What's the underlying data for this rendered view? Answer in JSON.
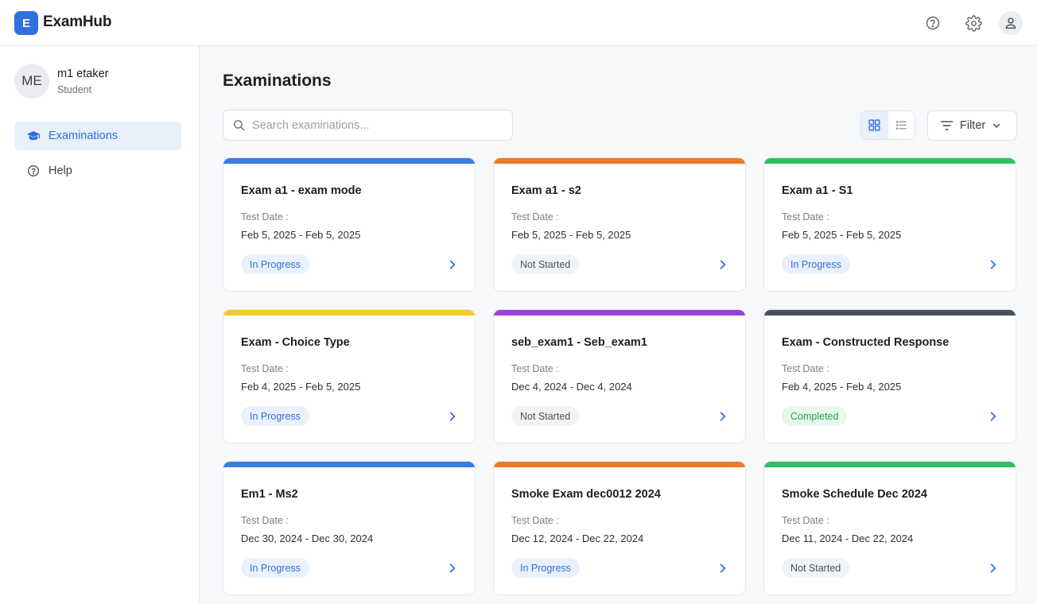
{
  "app": {
    "logo_letter": "E",
    "title": "ExamHub"
  },
  "header_icons": [
    "help-circle-icon",
    "gear-icon",
    "user-icon"
  ],
  "user": {
    "initials": "ME",
    "name": "m1 etaker",
    "role": "Student"
  },
  "sidebar": {
    "items": [
      {
        "label": "Examinations",
        "icon": "graduation-cap-icon",
        "active": true
      },
      {
        "label": "Help",
        "icon": "help-circle-icon",
        "active": false
      }
    ]
  },
  "main": {
    "title": "Examinations",
    "search": {
      "placeholder": "Search examinations...",
      "value": ""
    },
    "view": {
      "selected": "grid",
      "options": [
        "grid",
        "list"
      ]
    },
    "filter_label": "Filter"
  },
  "colors": {
    "accent": "#2f6fe0",
    "blue": "#3b7be3",
    "orange": "#ef7a2a",
    "green": "#2ec262",
    "yellow": "#f4c92b",
    "purple": "#9a3fdc",
    "slate": "#4a5159"
  },
  "exams": [
    {
      "title": "Exam a1 - exam mode",
      "date_label": "Test Date :",
      "dates": "Feb 5, 2025 - Feb 5, 2025",
      "status": "In Progress",
      "status_key": "inprogress",
      "color": "#3b7be3"
    },
    {
      "title": "Exam a1 - s2",
      "date_label": "Test Date :",
      "dates": "Feb 5, 2025 - Feb 5, 2025",
      "status": "Not Started",
      "status_key": "notstarted",
      "color": "#ef7a2a"
    },
    {
      "title": "Exam a1 - S1",
      "date_label": "Test Date :",
      "dates": "Feb 5, 2025 - Feb 5, 2025",
      "status": "In Progress",
      "status_key": "inprogress",
      "color": "#2ec262"
    },
    {
      "title": "Exam - Choice Type",
      "date_label": "Test Date :",
      "dates": "Feb 4, 2025 - Feb 5, 2025",
      "status": "In Progress",
      "status_key": "inprogress",
      "color": "#f4c92b"
    },
    {
      "title": "seb_exam1 - Seb_exam1",
      "date_label": "Test Date :",
      "dates": "Dec 4, 2024 - Dec 4, 2024",
      "status": "Not Started",
      "status_key": "notstarted",
      "color": "#9a3fdc"
    },
    {
      "title": "Exam - Constructed Response",
      "date_label": "Test Date :",
      "dates": "Feb 4, 2025 - Feb 4, 2025",
      "status": "Completed",
      "status_key": "completed",
      "color": "#4a5159"
    },
    {
      "title": "Em1 - Ms2",
      "date_label": "Test Date :",
      "dates": "Dec 30, 2024 - Dec 30, 2024",
      "status": "In Progress",
      "status_key": "inprogress",
      "color": "#3b7be3"
    },
    {
      "title": "Smoke Exam dec0012 2024",
      "date_label": "Test Date :",
      "dates": "Dec 12, 2024 - Dec 22, 2024",
      "status": "In Progress",
      "status_key": "inprogress",
      "color": "#ef7a2a"
    },
    {
      "title": "Smoke Schedule Dec 2024",
      "date_label": "Test Date :",
      "dates": "Dec 11, 2024 - Dec 22, 2024",
      "status": "Not Started",
      "status_key": "notstarted",
      "color": "#2ec262"
    }
  ]
}
